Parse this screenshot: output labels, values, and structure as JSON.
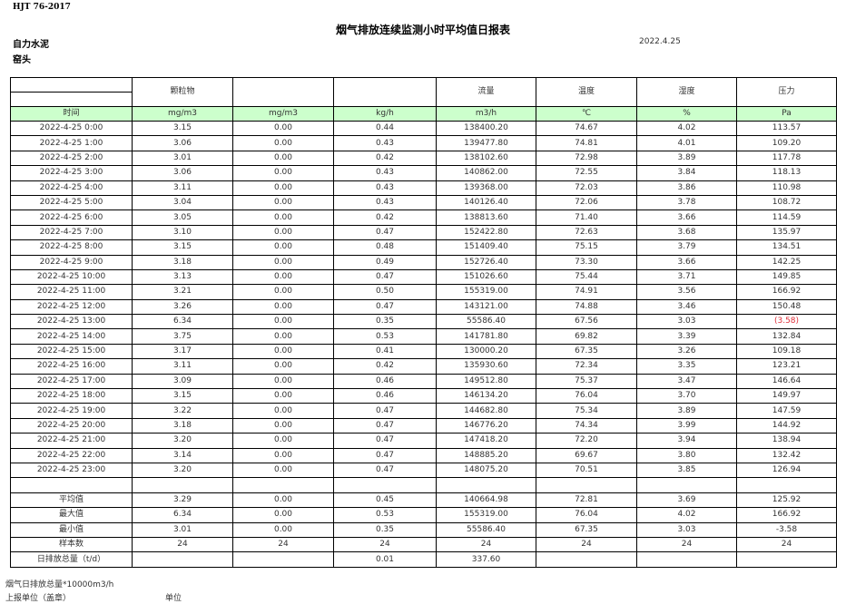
{
  "header": {
    "standard": "HJT  76-2017",
    "title": "烟气排放连续监测小时平均值日报表",
    "company": "自力水泥",
    "date": "2022.4.25",
    "unit": "窑头"
  },
  "columns": {
    "names": [
      "",
      "颗粒物",
      "",
      "",
      "流量",
      "温度",
      "湿度",
      "压力"
    ],
    "units": [
      "时间",
      "mg/m3",
      "mg/m3",
      "kg/h",
      "m3/h",
      "℃",
      "%",
      "Pa"
    ]
  },
  "rows": [
    [
      "2022-4-25 0:00",
      "3.15",
      "0.00",
      "0.44",
      "138400.20",
      "74.67",
      "4.02",
      "113.57"
    ],
    [
      "2022-4-25 1:00",
      "3.06",
      "0.00",
      "0.43",
      "139477.80",
      "74.81",
      "4.01",
      "109.20"
    ],
    [
      "2022-4-25 2:00",
      "3.01",
      "0.00",
      "0.42",
      "138102.60",
      "72.98",
      "3.89",
      "117.78"
    ],
    [
      "2022-4-25 3:00",
      "3.06",
      "0.00",
      "0.43",
      "140862.00",
      "72.55",
      "3.84",
      "118.13"
    ],
    [
      "2022-4-25 4:00",
      "3.11",
      "0.00",
      "0.43",
      "139368.00",
      "72.03",
      "3.86",
      "110.98"
    ],
    [
      "2022-4-25 5:00",
      "3.04",
      "0.00",
      "0.43",
      "140126.40",
      "72.06",
      "3.78",
      "108.72"
    ],
    [
      "2022-4-25 6:00",
      "3.05",
      "0.00",
      "0.42",
      "138813.60",
      "71.40",
      "3.66",
      "114.59"
    ],
    [
      "2022-4-25 7:00",
      "3.10",
      "0.00",
      "0.47",
      "152422.80",
      "72.63",
      "3.68",
      "135.97"
    ],
    [
      "2022-4-25 8:00",
      "3.15",
      "0.00",
      "0.48",
      "151409.40",
      "75.15",
      "3.79",
      "134.51"
    ],
    [
      "2022-4-25 9:00",
      "3.18",
      "0.00",
      "0.49",
      "152726.40",
      "73.30",
      "3.66",
      "142.25"
    ],
    [
      "2022-4-25 10:00",
      "3.13",
      "0.00",
      "0.47",
      "151026.60",
      "75.44",
      "3.71",
      "149.85"
    ],
    [
      "2022-4-25 11:00",
      "3.21",
      "0.00",
      "0.50",
      "155319.00",
      "74.91",
      "3.56",
      "166.92"
    ],
    [
      "2022-4-25 12:00",
      "3.26",
      "0.00",
      "0.47",
      "143121.00",
      "74.88",
      "3.46",
      "150.48"
    ],
    [
      "2022-4-25 13:00",
      "6.34",
      "0.00",
      "0.35",
      "55586.40",
      "67.56",
      "3.03",
      "(3.58)"
    ],
    [
      "2022-4-25 14:00",
      "3.75",
      "0.00",
      "0.53",
      "141781.80",
      "69.82",
      "3.39",
      "132.84"
    ],
    [
      "2022-4-25 15:00",
      "3.17",
      "0.00",
      "0.41",
      "130000.20",
      "67.35",
      "3.26",
      "109.18"
    ],
    [
      "2022-4-25 16:00",
      "3.11",
      "0.00",
      "0.42",
      "135930.60",
      "72.34",
      "3.35",
      "123.21"
    ],
    [
      "2022-4-25 17:00",
      "3.09",
      "0.00",
      "0.46",
      "149512.80",
      "75.37",
      "3.47",
      "146.64"
    ],
    [
      "2022-4-25 18:00",
      "3.15",
      "0.00",
      "0.46",
      "146134.20",
      "76.04",
      "3.70",
      "149.97"
    ],
    [
      "2022-4-25 19:00",
      "3.22",
      "0.00",
      "0.47",
      "144682.80",
      "75.34",
      "3.89",
      "147.59"
    ],
    [
      "2022-4-25 20:00",
      "3.18",
      "0.00",
      "0.47",
      "146776.20",
      "74.34",
      "3.99",
      "144.92"
    ],
    [
      "2022-4-25 21:00",
      "3.20",
      "0.00",
      "0.47",
      "147418.20",
      "72.20",
      "3.94",
      "138.94"
    ],
    [
      "2022-4-25 22:00",
      "3.14",
      "0.00",
      "0.47",
      "148885.20",
      "69.67",
      "3.80",
      "132.42"
    ],
    [
      "2022-4-25 23:00",
      "3.20",
      "0.00",
      "0.47",
      "148075.20",
      "70.51",
      "3.85",
      "126.94"
    ]
  ],
  "negative_color": "#e0303a",
  "summary": [
    [
      "平均值",
      "3.29",
      "0.00",
      "0.45",
      "140664.98",
      "72.81",
      "3.69",
      "125.92"
    ],
    [
      "最大值",
      "6.34",
      "0.00",
      "0.53",
      "155319.00",
      "76.04",
      "4.02",
      "166.92"
    ],
    [
      "最小值",
      "3.01",
      "0.00",
      "0.35",
      "55586.40",
      "67.35",
      "3.03",
      "-3.58"
    ],
    [
      "样本数",
      "24",
      "24",
      "24",
      "24",
      "24",
      "24",
      "24"
    ],
    [
      "日排放总量（t/d）",
      "",
      "",
      "0.01",
      "337.60",
      "",
      "",
      ""
    ]
  ],
  "footer": {
    "note1": "烟气日排放总量*10000m3/h",
    "note2": "上报单位（盖章）",
    "note3": "单位"
  }
}
